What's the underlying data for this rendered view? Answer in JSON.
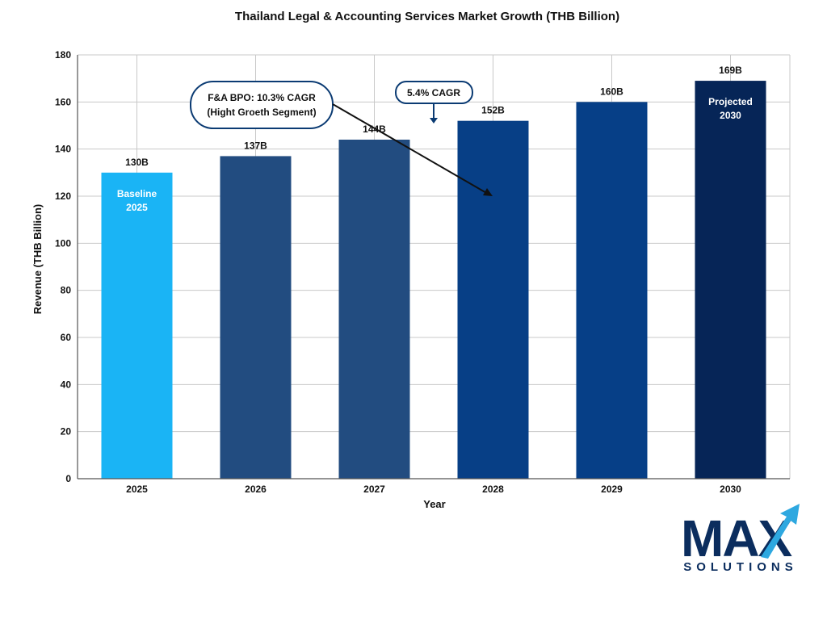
{
  "chart_data": {
    "type": "bar",
    "title": "Thailand Legal & Accounting Services Market Growth (THB Billion)",
    "xlabel": "Year",
    "ylabel": "Revenue (THB Billion)",
    "categories": [
      "2025",
      "2026",
      "2027",
      "2028",
      "2029",
      "2030"
    ],
    "values": [
      130,
      137,
      144,
      152,
      160,
      169
    ],
    "value_labels": [
      "130B",
      "137B",
      "144B",
      "152B",
      "160B",
      "169B"
    ],
    "bar_colors": [
      "#1ab4f5",
      "#224c80",
      "#224c80",
      "#073f86",
      "#063f87",
      "#062557"
    ],
    "ylim": [
      0,
      180
    ],
    "yticks": [
      0,
      20,
      40,
      60,
      80,
      100,
      120,
      140,
      160,
      180
    ],
    "grid": true,
    "legend": "none",
    "bar_annotations": [
      {
        "index": 0,
        "lines": [
          "Baseline",
          "2025"
        ]
      },
      {
        "index": 5,
        "lines": [
          "Projected",
          "2030"
        ]
      }
    ],
    "callouts": [
      {
        "id": "fa-bpo",
        "lines": [
          "F&A BPO: 10.3% CAGR",
          "(Hight Groeth Segment)"
        ]
      },
      {
        "id": "cagr",
        "lines": [
          "5.4% CAGR"
        ]
      }
    ]
  },
  "logo": {
    "text": "MAX",
    "subtext": "SOLUTIONS",
    "colors": {
      "dark": "#0b2d5e",
      "accent": "#2ea8e0"
    }
  }
}
